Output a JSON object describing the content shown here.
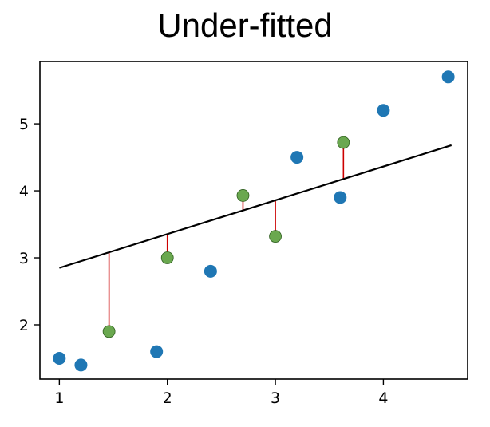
{
  "chart_data": {
    "type": "scatter",
    "title": "Under-fitted",
    "xlabel": "",
    "ylabel": "",
    "xlim": [
      0.82,
      4.78
    ],
    "ylim": [
      1.19,
      5.93
    ],
    "xticks": [
      1,
      2,
      3,
      4
    ],
    "yticks": [
      2,
      3,
      4,
      5
    ],
    "grid": false,
    "colors": {
      "train": "#1f77b4",
      "test": "#6aa84f",
      "fit": "#000000",
      "residual": "#cc0000"
    },
    "train_points": [
      {
        "x": 1.0,
        "y": 1.5
      },
      {
        "x": 1.2,
        "y": 1.4
      },
      {
        "x": 1.9,
        "y": 1.6
      },
      {
        "x": 2.4,
        "y": 2.8
      },
      {
        "x": 3.2,
        "y": 4.5
      },
      {
        "x": 3.6,
        "y": 3.9
      },
      {
        "x": 4.0,
        "y": 5.2
      },
      {
        "x": 4.6,
        "y": 5.7
      }
    ],
    "test_points": [
      {
        "x": 1.46,
        "y": 1.9
      },
      {
        "x": 2.0,
        "y": 3.0
      },
      {
        "x": 2.7,
        "y": 3.93
      },
      {
        "x": 3.0,
        "y": 3.32
      },
      {
        "x": 3.63,
        "y": 4.72
      }
    ],
    "fit_line": {
      "x": [
        1.0,
        4.63
      ],
      "y": [
        2.85,
        4.68
      ]
    }
  }
}
